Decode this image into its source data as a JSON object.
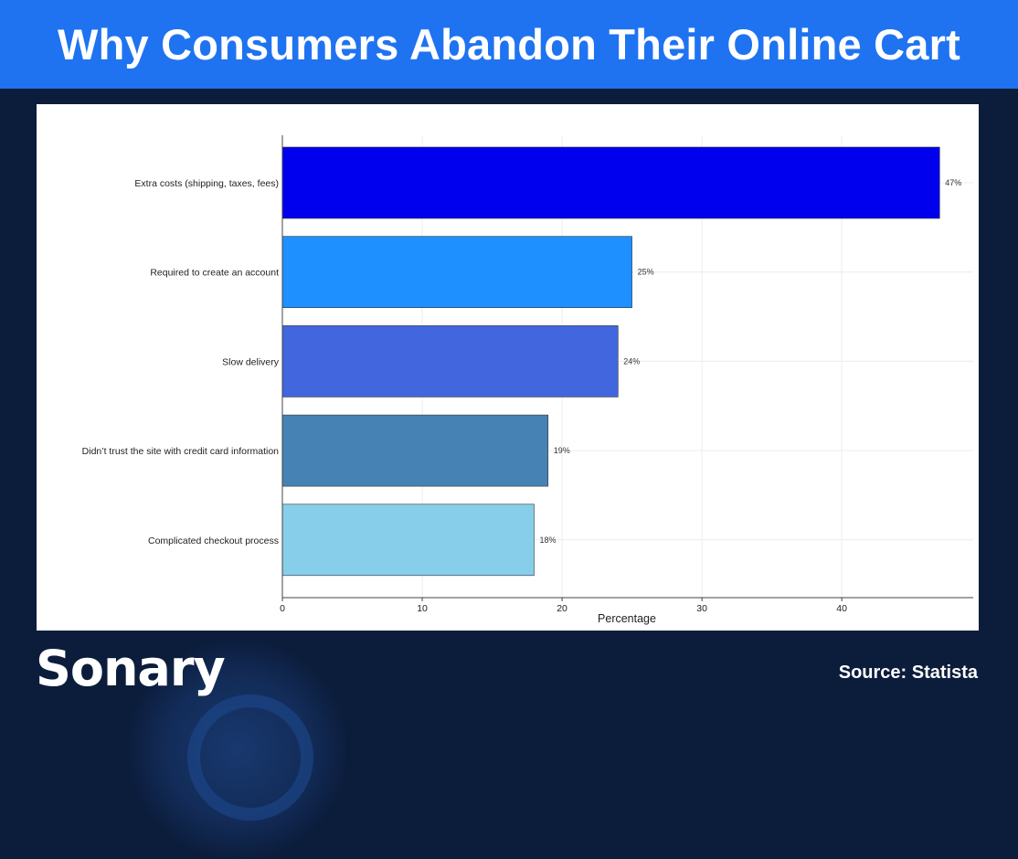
{
  "header": {
    "title": "Why Consumers Abandon Their Online Cart"
  },
  "brand": {
    "logo_text": "Sonary"
  },
  "footer": {
    "source": "Source: Statista"
  },
  "chart_data": {
    "type": "bar",
    "orientation": "horizontal",
    "categories": [
      "Extra costs (shipping, taxes, fees)",
      "Required to create an account",
      "Slow delivery",
      "Didn’t trust the site with credit card information",
      "Complicated checkout process"
    ],
    "values": [
      47,
      25,
      24,
      19,
      18
    ],
    "value_labels": [
      "47%",
      "25%",
      "24%",
      "19%",
      "18%"
    ],
    "colors": [
      "#0000ee",
      "#1e90ff",
      "#4166dd",
      "#4682b4",
      "#87ceeb"
    ],
    "xlabel": "Percentage",
    "ylabel": "",
    "xlim": [
      0,
      49.4
    ],
    "xticks": [
      0,
      10,
      20,
      30,
      40
    ],
    "grid": true
  }
}
